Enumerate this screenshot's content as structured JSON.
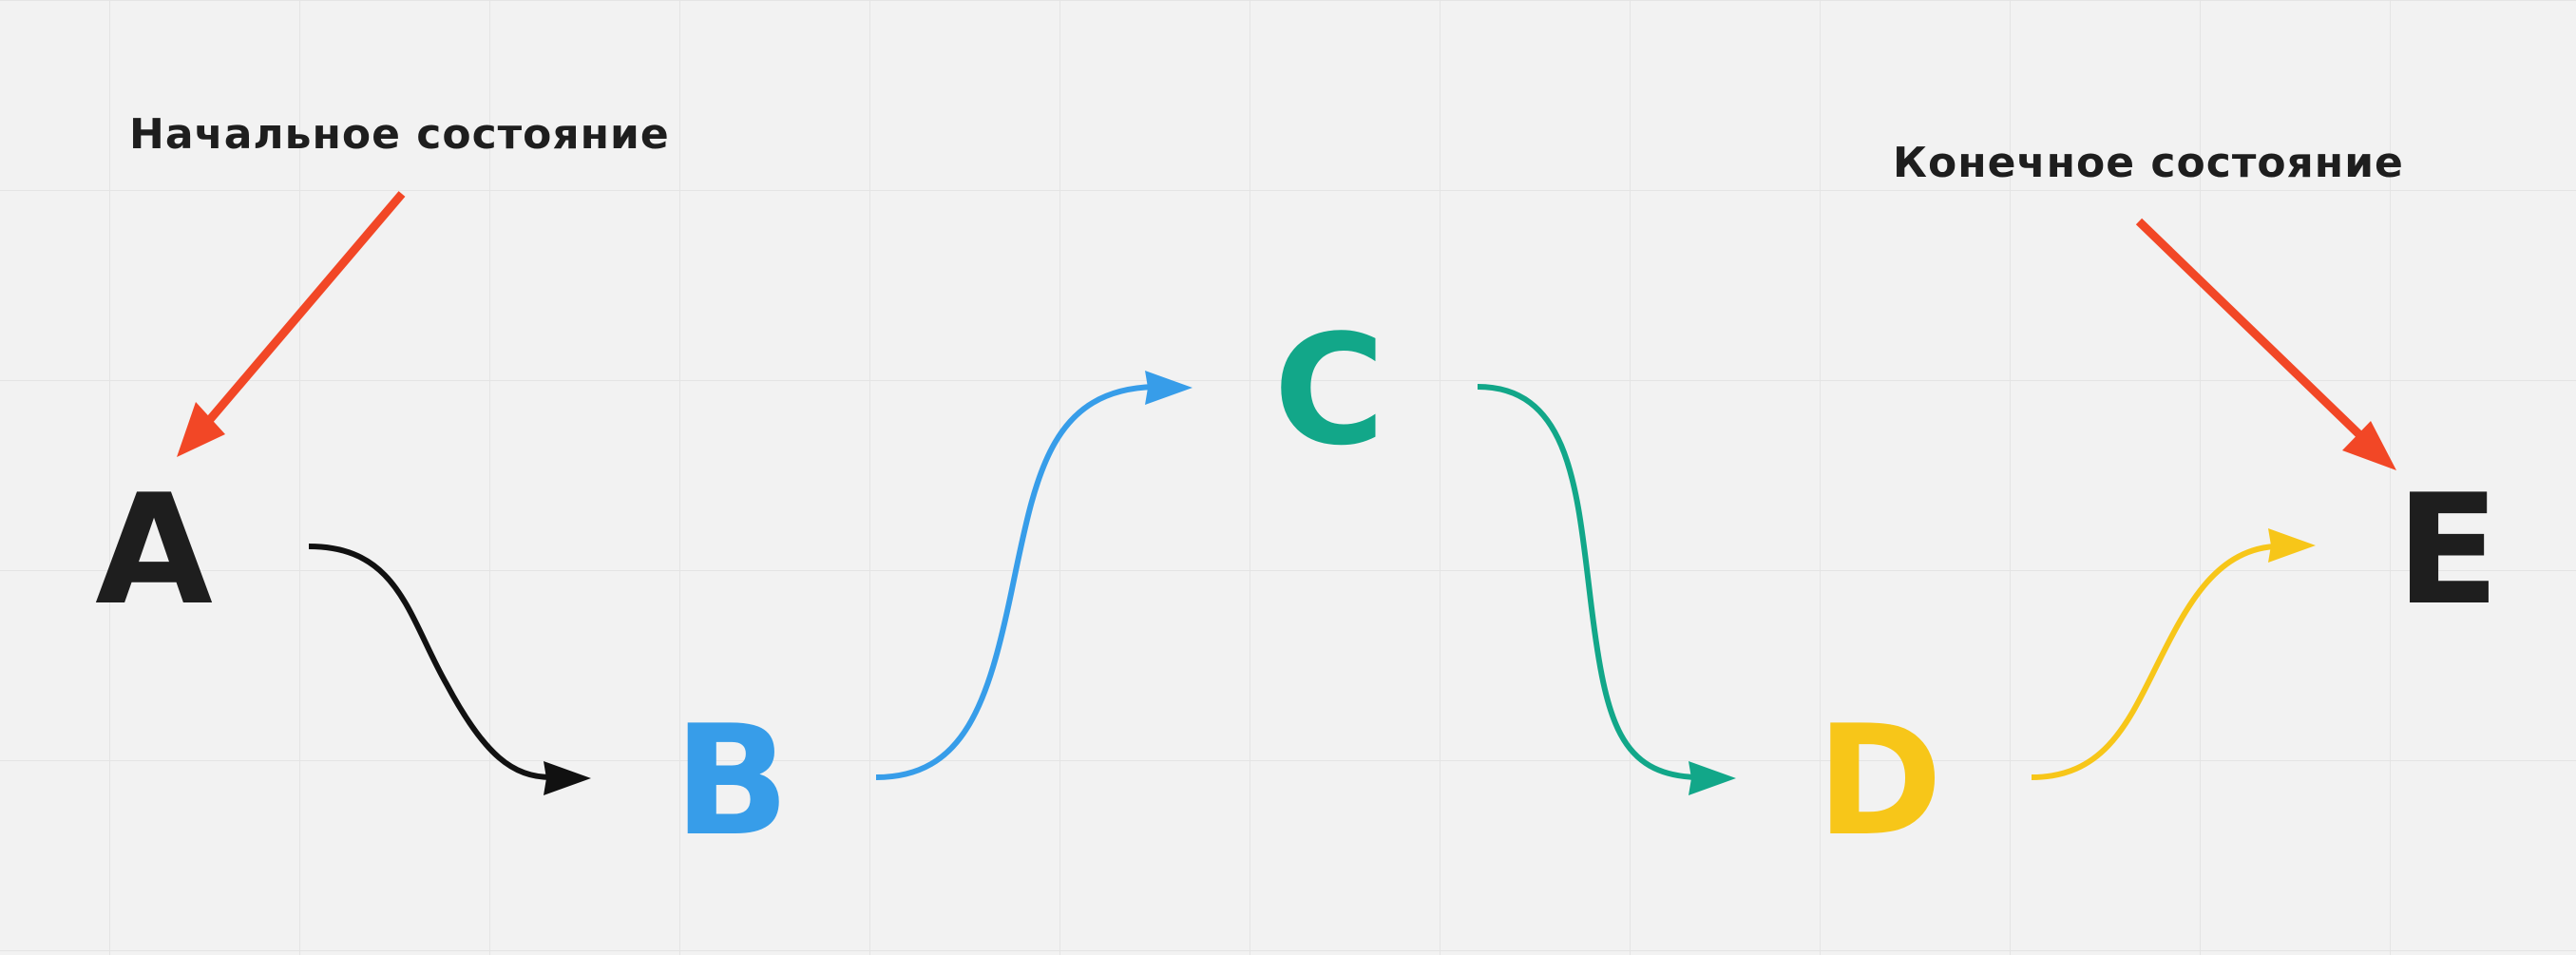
{
  "labels": {
    "start": "Начальное состояние",
    "end": "Конечное состояние"
  },
  "nodes": [
    {
      "id": "a",
      "label": "A",
      "color": "#1e1e1e"
    },
    {
      "id": "b",
      "label": "B",
      "color": "#379de9"
    },
    {
      "id": "c",
      "label": "C",
      "color": "#12a789"
    },
    {
      "id": "d",
      "label": "D",
      "color": "#f7c619"
    },
    {
      "id": "e",
      "label": "E",
      "color": "#1e1e1e"
    }
  ],
  "colors": {
    "background": "#f2f2f2",
    "grid": "#e4e4e4",
    "label_text": "#1e1e1e",
    "pointer_arrow": "#f24726"
  }
}
